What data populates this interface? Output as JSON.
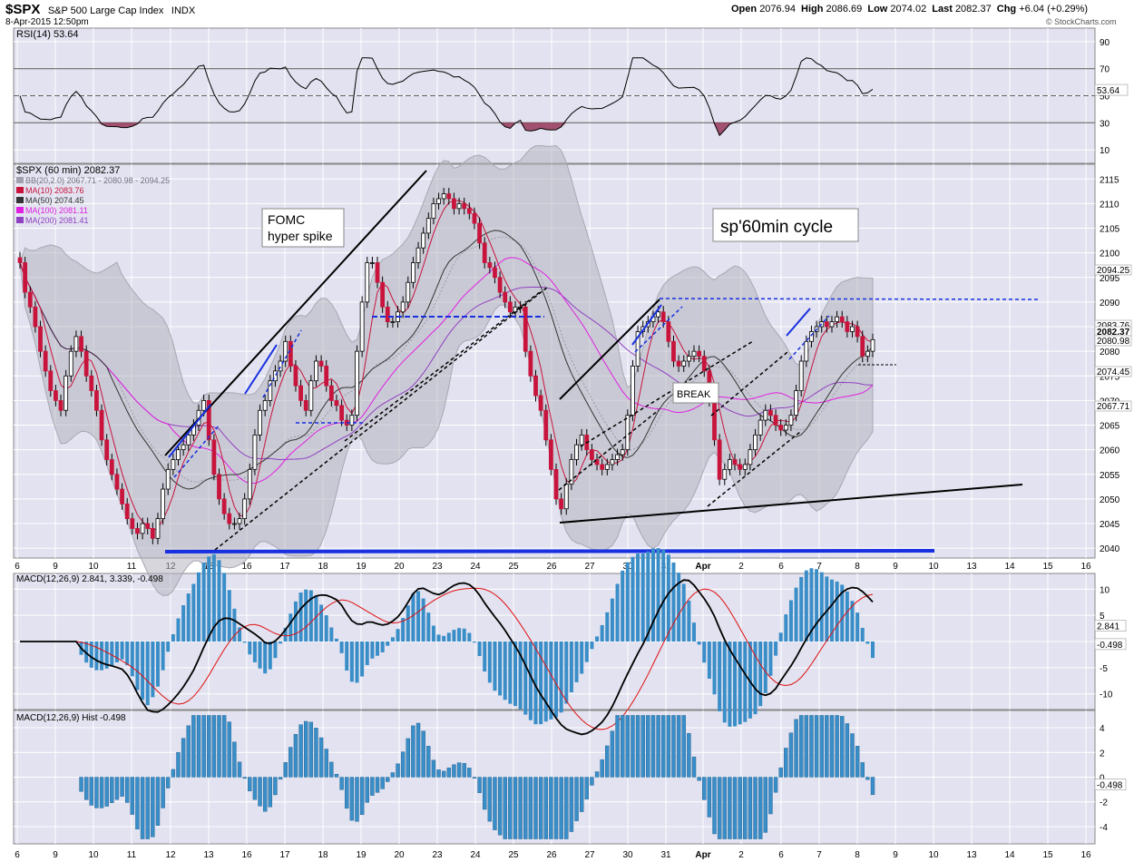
{
  "header": {
    "symbol": "$SPX",
    "name": "S&P 500 Large Cap Index",
    "exchange": "INDX",
    "datetime": "8-Apr-2015 12:50pm",
    "open_label": "Open",
    "open": "2076.94",
    "high_label": "High",
    "high": "2086.69",
    "low_label": "Low",
    "low": "2074.02",
    "last_label": "Last",
    "last": "2082.37",
    "chg_label": "Chg",
    "chg": "+6.04 (+0.29%)",
    "source": "© StockCharts.com"
  },
  "colors": {
    "panel_bg": "#e2e2f0",
    "grid": "#ffffff",
    "up_candle": "#ffffff",
    "down_candle": "#c8143c",
    "bb_fill": "#b4b4bf",
    "ma10": "#c8143c",
    "ma50": "#333333",
    "ma100": "#e020e0",
    "ma200": "#9040c0",
    "trend_blue": "#1830e0",
    "macd_hist": "#3a8ec8",
    "signal": "#e01010"
  },
  "chart_data": [
    {
      "type": "line",
      "title": "RSI(14) 53.64",
      "indicator_label": "RSI(14)",
      "indicator_value": "53.64",
      "ylim": [
        0,
        100
      ],
      "y_ticks": [
        10,
        30,
        50,
        70,
        90
      ],
      "reference_lines": [
        30,
        70
      ],
      "last_value": 53.64
    },
    {
      "type": "candlestick",
      "title": "$SPX (60 min) 2082.37",
      "legend": [
        {
          "label": "BB(20,2.0) 2067.71 - 2080.98 - 2094.25",
          "color": "#a0a0b0"
        },
        {
          "label": "MA(10) 2083.76",
          "color": "#c8143c"
        },
        {
          "label": "MA(50) 2074.45",
          "color": "#333333"
        },
        {
          "label": "MA(100) 2081.11",
          "color": "#e020e0"
        },
        {
          "label": "MA(200) 2081.41",
          "color": "#9040c0"
        }
      ],
      "ylim": [
        2038,
        2118
      ],
      "y_ticks": [
        2040,
        2045,
        2050,
        2055,
        2060,
        2065,
        2070,
        2075,
        2080,
        2085,
        2090,
        2095,
        2100,
        2105,
        2110,
        2115
      ],
      "x_ticks": [
        "6",
        "9",
        "10",
        "11",
        "12",
        "13",
        "16",
        "17",
        "18",
        "19",
        "20",
        "23",
        "24",
        "25",
        "26",
        "27",
        "30",
        "31",
        "Apr",
        "2",
        "6",
        "7",
        "8",
        "9",
        "10",
        "13",
        "14",
        "15",
        "16"
      ],
      "price_tags": [
        "2094.25",
        "2083.76",
        "2082.37",
        "2080.98",
        "2074.45",
        "2067.71"
      ],
      "annotations": [
        "FOMC",
        "hyper spike",
        "sp'60min cycle",
        "BREAK"
      ],
      "close_points": [
        2098,
        2092,
        2089,
        2085,
        2080,
        2076,
        2072,
        2070,
        2068,
        2075,
        2080,
        2083,
        2080,
        2075,
        2072,
        2068,
        2062,
        2058,
        2055,
        2052,
        2049,
        2046,
        2044,
        2043,
        2045,
        2044,
        2042,
        2046,
        2052,
        2056,
        2058,
        2060,
        2061,
        2063,
        2065,
        2068,
        2070,
        2062,
        2055,
        2050,
        2047,
        2045,
        2045,
        2046,
        2050,
        2056,
        2063,
        2068,
        2070,
        2074,
        2076,
        2078,
        2082,
        2077,
        2073,
        2070,
        2068,
        2074,
        2078,
        2077,
        2073,
        2070,
        2069,
        2066,
        2065,
        2067,
        2080,
        2090,
        2098,
        2098,
        2094,
        2089,
        2086,
        2086,
        2088,
        2090,
        2094,
        2098,
        2101,
        2104,
        2107,
        2110,
        2111,
        2112,
        2111,
        2109,
        2110,
        2109,
        2108,
        2106,
        2102,
        2098,
        2097,
        2095,
        2092,
        2090,
        2088,
        2089,
        2089,
        2080,
        2075,
        2071,
        2068,
        2062,
        2056,
        2050,
        2048,
        2053,
        2058,
        2061,
        2063,
        2060,
        2058,
        2057,
        2056,
        2057,
        2058,
        2059,
        2060,
        2067,
        2077,
        2084,
        2085,
        2086,
        2087,
        2088,
        2086,
        2082,
        2078,
        2077,
        2078,
        2079,
        2080,
        2079,
        2076,
        2070,
        2062,
        2054,
        2056,
        2058,
        2057,
        2056,
        2057,
        2060,
        2063,
        2066,
        2068,
        2067,
        2065,
        2064,
        2065,
        2067,
        2072,
        2078,
        2082,
        2084,
        2085,
        2086,
        2085,
        2086,
        2087,
        2086,
        2084,
        2085,
        2083,
        2079,
        2080,
        2082.37
      ]
    },
    {
      "type": "bar+line",
      "title": "MACD(12,26,9) 2.841, 3.339, -0.498",
      "indicator_label": "MACD(12,26,9)",
      "macd_value": "2.841",
      "signal_value": "3.339",
      "hist_value": "-0.498",
      "ylim": [
        -13,
        13
      ],
      "y_ticks": [
        10,
        5,
        0,
        -5,
        -10
      ]
    },
    {
      "type": "bar",
      "title": "MACD(12,26,9) Hist -0.498",
      "indicator_label": "MACD(12,26,9) Hist",
      "hist_value": "-0.498",
      "ylim": [
        -5.4,
        5.4
      ],
      "y_ticks": [
        4,
        2,
        0,
        -2,
        -4
      ]
    }
  ]
}
